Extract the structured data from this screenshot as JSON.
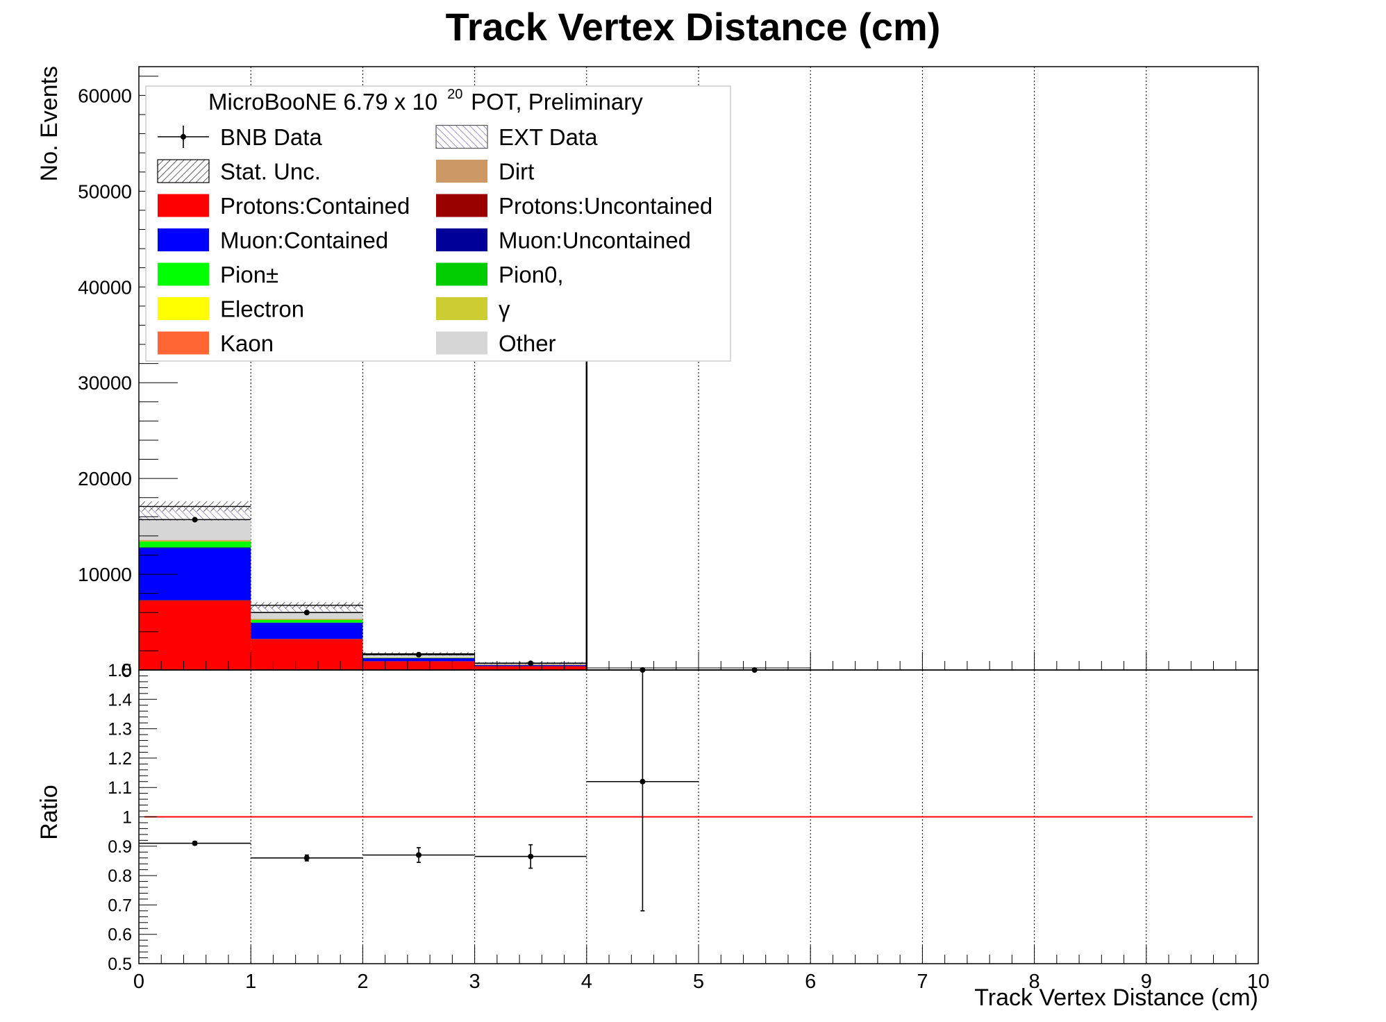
{
  "chart_data": [
    {
      "type": "bar",
      "title": "Track Vertex Distance (cm)",
      "ylabel": "No. Events",
      "xlim": [
        0,
        10
      ],
      "ylim": [
        0,
        63000
      ],
      "x_ticks": [
        "0",
        "1",
        "2",
        "3",
        "4",
        "5",
        "6",
        "7",
        "8",
        "9",
        "10"
      ],
      "y_ticks": [
        {
          "v": 0,
          "label": "0"
        },
        {
          "v": 10000,
          "label": "10000"
        },
        {
          "v": 20000,
          "label": "20000"
        },
        {
          "v": 30000,
          "label": "30000"
        },
        {
          "v": 40000,
          "label": "40000"
        },
        {
          "v": 50000,
          "label": "50000"
        },
        {
          "v": 60000,
          "label": "60000"
        }
      ],
      "grid": true,
      "stacked": true,
      "bin_edges": [
        0,
        1,
        2,
        3,
        4,
        5,
        6
      ],
      "series": [
        {
          "name": "Protons:Contained",
          "color": "#ff0000",
          "values": [
            7200,
            3200,
            900,
            400,
            0,
            0
          ]
        },
        {
          "name": "Protons:Uncontained",
          "color": "#990000",
          "values": [
            100,
            50,
            20,
            10,
            0,
            0
          ]
        },
        {
          "name": "Muon:Contained",
          "color": "#0000ff",
          "values": [
            5400,
            1650,
            300,
            100,
            0,
            0
          ]
        },
        {
          "name": "Muon:Uncontained",
          "color": "#000099",
          "values": [
            100,
            50,
            10,
            10,
            0,
            0
          ]
        },
        {
          "name": "Pion±",
          "color": "#00ff00",
          "values": [
            600,
            300,
            60,
            30,
            0,
            0
          ]
        },
        {
          "name": "Pion0,",
          "color": "#00cc00",
          "values": [
            50,
            20,
            5,
            2,
            0,
            0
          ]
        },
        {
          "name": "Electron",
          "color": "#ffff00",
          "values": [
            10,
            5,
            2,
            1,
            0,
            0
          ]
        },
        {
          "name": "γ",
          "color": "#cccc33",
          "values": [
            20,
            10,
            3,
            2,
            0,
            0
          ]
        },
        {
          "name": "Kaon",
          "color": "#ff6633",
          "values": [
            20,
            10,
            3,
            2,
            0,
            0
          ]
        },
        {
          "name": "Dirt",
          "color": "#cc9966",
          "values": [
            80,
            30,
            10,
            5,
            0,
            0
          ]
        },
        {
          "name": "Other",
          "color": "#d6d6d6",
          "values": [
            2000,
            780,
            180,
            80,
            0,
            0
          ]
        },
        {
          "name": "EXT Data",
          "color": "#6a4fa0",
          "hatch": true,
          "values": [
            1500,
            650,
            200,
            80,
            0,
            0
          ]
        }
      ],
      "bnb_data": {
        "name": "BNB Data",
        "x": [
          0.5,
          1.5,
          2.5,
          3.5,
          4.5,
          5.5
        ],
        "y": [
          15700,
          6000,
          1600,
          700,
          5,
          1
        ],
        "yerr": [
          125,
          77,
          40,
          26,
          2,
          1
        ]
      },
      "stat_unc_name": "Stat. Unc.",
      "spike": {
        "x": 4.0,
        "y": 36000
      },
      "legend": {
        "placement": "top-left",
        "header": "MicroBooNE 6.79 x 10",
        "header_exp": "20",
        "header_tail": "POT, Preliminary",
        "columns": [
          [
            "BNB Data",
            "Stat. Unc.",
            "Protons:Contained",
            "Muon:Contained",
            "Pion±",
            "Electron",
            "Kaon"
          ],
          [
            "EXT Data",
            "Dirt",
            "Protons:Uncontained",
            "Muon:Uncontained",
            "Pion0,",
            "γ",
            "Other"
          ]
        ]
      }
    },
    {
      "type": "scatter",
      "ylabel": "Ratio",
      "xlabel": "Track Vertex Distance (cm)",
      "xlim": [
        0,
        10
      ],
      "ylim": [
        0.5,
        1.5
      ],
      "y_ticks": [
        "0.5",
        "0.6",
        "0.7",
        "0.8",
        "0.9",
        "1",
        "1.1",
        "1.2",
        "1.3",
        "1.4",
        "1.5"
      ],
      "reference_line": {
        "y": 1.0,
        "color": "#ff0000"
      },
      "x": [
        0.5,
        1.5,
        2.5,
        3.5,
        4.5
      ],
      "y": [
        0.91,
        0.86,
        0.87,
        0.865,
        1.12
      ],
      "xerr": [
        0.5,
        0.5,
        0.5,
        0.5,
        0.5
      ],
      "yerr": [
        0.006,
        0.01,
        0.025,
        0.04,
        0.44
      ]
    }
  ]
}
